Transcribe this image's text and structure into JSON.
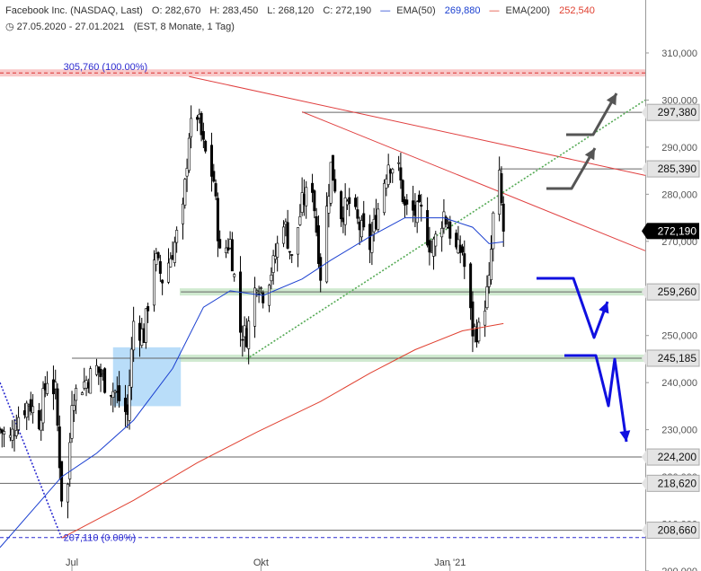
{
  "header": {
    "symbol": "Facebook Inc. (NASDAQ, Last)",
    "open": "O: 282,670",
    "high": "H: 283,450",
    "low": "L: 268,120",
    "close": "C: 272,190",
    "ema50_label": "EMA(50)",
    "ema50_value": "269,880",
    "ema200_label": "EMA(200)",
    "ema200_value": "252,540",
    "period": "27.05.2020 - 27.01.2021",
    "info": "(EST, 8 Monate, 1 Tag)"
  },
  "chart_data": {
    "type": "candlestick",
    "ylim": [
      200000,
      314000
    ],
    "y_ticks": [
      {
        "value": 200000,
        "label": "200,000"
      },
      {
        "value": 210000,
        "label": "210,000"
      },
      {
        "value": 220000,
        "label": "220,000"
      },
      {
        "value": 230000,
        "label": "230,000"
      },
      {
        "value": 240000,
        "label": "240,000"
      },
      {
        "value": 250000,
        "label": "250,000"
      },
      {
        "value": 260000,
        "label": "260,000"
      },
      {
        "value": 270000,
        "label": "270,000"
      },
      {
        "value": 280000,
        "label": "280,000"
      },
      {
        "value": 290000,
        "label": "290,000"
      },
      {
        "value": 300000,
        "label": "300,000"
      },
      {
        "value": 310000,
        "label": "310,000"
      }
    ],
    "x_ticks": [
      {
        "date": "2020-07-01",
        "label": "Jul"
      },
      {
        "date": "2020-10-01",
        "label": "Okt"
      },
      {
        "date": "2021-01-01",
        "label": "Jan '21"
      }
    ],
    "x_range": [
      "2020-05-27",
      "2021-04-06"
    ],
    "series_close": [
      [
        "2020-05-27",
        230000
      ],
      [
        "2020-06-01",
        228000
      ],
      [
        "2020-06-05",
        233000
      ],
      [
        "2020-06-10",
        236000
      ],
      [
        "2020-06-15",
        232000
      ],
      [
        "2020-06-19",
        241000
      ],
      [
        "2020-06-23",
        238000
      ],
      [
        "2020-06-26",
        216000
      ],
      [
        "2020-06-29",
        218000
      ],
      [
        "2020-07-01",
        237000
      ],
      [
        "2020-07-07",
        240000
      ],
      [
        "2020-07-13",
        243000
      ],
      [
        "2020-07-17",
        240000
      ],
      [
        "2020-07-22",
        238000
      ],
      [
        "2020-07-28",
        233000
      ],
      [
        "2020-07-31",
        253000
      ],
      [
        "2020-08-05",
        250000
      ],
      [
        "2020-08-10",
        267000
      ],
      [
        "2020-08-14",
        262000
      ],
      [
        "2020-08-19",
        268000
      ],
      [
        "2020-08-24",
        276000
      ],
      [
        "2020-08-27",
        293000
      ],
      [
        "2020-08-31",
        297000
      ],
      [
        "2020-09-03",
        290000
      ],
      [
        "2020-09-08",
        283000
      ],
      [
        "2020-09-11",
        267000
      ],
      [
        "2020-09-16",
        270000
      ],
      [
        "2020-09-21",
        251000
      ],
      [
        "2020-09-24",
        250000
      ],
      [
        "2020-09-29",
        262000
      ],
      [
        "2020-10-02",
        259000
      ],
      [
        "2020-10-07",
        265000
      ],
      [
        "2020-10-12",
        275000
      ],
      [
        "2020-10-16",
        266000
      ],
      [
        "2020-10-21",
        278000
      ],
      [
        "2020-10-26",
        282000
      ],
      [
        "2020-10-30",
        263000
      ],
      [
        "2020-11-04",
        286000
      ],
      [
        "2020-11-09",
        276000
      ],
      [
        "2020-11-13",
        278000
      ],
      [
        "2020-11-18",
        273000
      ],
      [
        "2020-11-23",
        269000
      ],
      [
        "2020-11-27",
        277000
      ],
      [
        "2020-12-02",
        287000
      ],
      [
        "2020-12-07",
        285000
      ],
      [
        "2020-12-10",
        277000
      ],
      [
        "2020-12-15",
        276000
      ],
      [
        "2020-12-18",
        276000
      ],
      [
        "2020-12-23",
        268000
      ],
      [
        "2020-12-29",
        276000
      ],
      [
        "2021-01-04",
        268000
      ],
      [
        "2021-01-07",
        268000
      ],
      [
        "2021-01-12",
        251000
      ],
      [
        "2021-01-15",
        251000
      ],
      [
        "2021-01-20",
        261000
      ],
      [
        "2021-01-22",
        275000
      ],
      [
        "2021-01-25",
        283000
      ],
      [
        "2021-01-27",
        272190
      ]
    ],
    "ema50": [
      [
        "2020-05-27",
        205000
      ],
      [
        "2020-06-26",
        220000
      ],
      [
        "2020-07-13",
        225000
      ],
      [
        "2020-07-31",
        232000
      ],
      [
        "2020-08-19",
        243000
      ],
      [
        "2020-09-03",
        256000
      ],
      [
        "2020-09-16",
        259500
      ],
      [
        "2020-10-02",
        258500
      ],
      [
        "2020-10-21",
        262000
      ],
      [
        "2020-11-04",
        266000
      ],
      [
        "2020-11-23",
        271000
      ],
      [
        "2020-12-10",
        275000
      ],
      [
        "2020-12-29",
        275000
      ],
      [
        "2021-01-12",
        273000
      ],
      [
        "2021-01-20",
        269500
      ],
      [
        "2021-01-27",
        269880
      ]
    ],
    "ema200": [
      [
        "2020-06-26",
        207000
      ],
      [
        "2020-07-31",
        215000
      ],
      [
        "2020-08-31",
        223000
      ],
      [
        "2020-09-29",
        229500
      ],
      [
        "2020-10-30",
        236000
      ],
      [
        "2020-11-23",
        242000
      ],
      [
        "2020-12-15",
        247000
      ],
      [
        "2021-01-07",
        251000
      ],
      [
        "2021-01-27",
        252540
      ]
    ],
    "horizontal_levels": [
      {
        "value": 305760,
        "label": "305,760 (100.00%)",
        "style": "fib-dashed"
      },
      {
        "value": 297380,
        "label": "297,380"
      },
      {
        "value": 285390,
        "label": "285,390"
      },
      {
        "value": 259260,
        "label": "259,260",
        "style": "support-zone"
      },
      {
        "value": 245185,
        "label": "245,185",
        "style": "support-zone"
      },
      {
        "value": 224200,
        "label": "224,200"
      },
      {
        "value": 218620,
        "label": "218,620"
      },
      {
        "value": 208660,
        "label": "208,660"
      },
      {
        "value": 207110,
        "label": "207,110 (0.00%)",
        "style": "fib-dashed"
      }
    ],
    "last_price": {
      "value": 272190,
      "label": "272,190"
    },
    "trendlines": [
      {
        "color": "#e04040",
        "from": [
          "2020-08-27",
          305000
        ],
        "to": [
          "2021-04-06",
          284000
        ]
      },
      {
        "color": "#e04040",
        "from": [
          "2020-10-21",
          297500
        ],
        "to": [
          "2021-04-06",
          268000
        ]
      },
      {
        "color": "#55aa55",
        "style": "dotted",
        "from": [
          "2020-09-24",
          245000
        ],
        "to": [
          "2021-04-06",
          300000
        ]
      },
      {
        "color": "#2a2ad0",
        "style": "dotted",
        "from": [
          "2020-05-27",
          240000
        ],
        "to": [
          "2020-06-26",
          207000
        ]
      }
    ],
    "colors": {
      "candle_up": "#ffffff",
      "candle_down": "#000000",
      "ema50": "#1a3fd0",
      "ema200": "#e04030",
      "support_zone": "#c8e6c8",
      "fib_zone": "#f8c8c8",
      "highlight_box": "#a8d4f8",
      "scenario_up": "#555555",
      "scenario_down": "#1010e0"
    }
  }
}
